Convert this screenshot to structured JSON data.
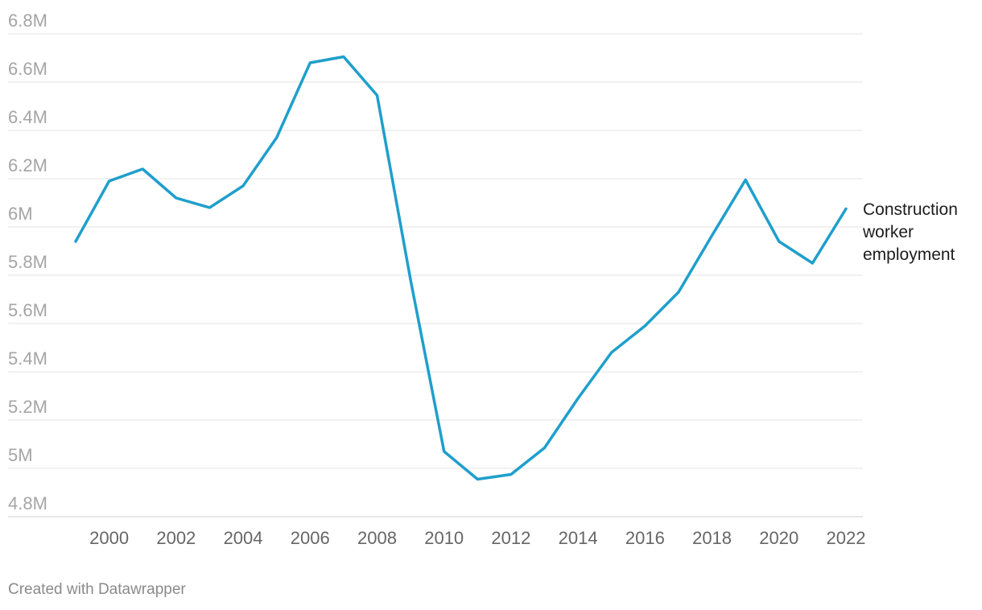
{
  "chart_data": {
    "type": "line",
    "title": "",
    "xlabel": "",
    "ylabel": "",
    "x": [
      1999,
      2000,
      2001,
      2002,
      2003,
      2004,
      2005,
      2006,
      2007,
      2008,
      2009,
      2010,
      2011,
      2012,
      2013,
      2014,
      2015,
      2016,
      2017,
      2018,
      2019,
      2020,
      2021,
      2022
    ],
    "series": [
      {
        "name": "Construction worker employment",
        "color": "#1f9fcc",
        "values": [
          5.94,
          6.19,
          6.24,
          6.12,
          6.08,
          6.17,
          6.37,
          6.68,
          6.705,
          6.545,
          5.78,
          5.07,
          4.955,
          4.975,
          5.085,
          5.29,
          5.48,
          5.59,
          5.73,
          5.965,
          6.195,
          5.94,
          5.85,
          6.075
        ]
      }
    ],
    "ylim": [
      4.8,
      6.8
    ],
    "y_ticks": [
      {
        "value": 6.8,
        "label": "6.8M"
      },
      {
        "value": 6.6,
        "label": "6.6M"
      },
      {
        "value": 6.4,
        "label": "6.4M"
      },
      {
        "value": 6.2,
        "label": "6.2M"
      },
      {
        "value": 6.0,
        "label": "6M"
      },
      {
        "value": 5.8,
        "label": "5.8M"
      },
      {
        "value": 5.6,
        "label": "5.6M"
      },
      {
        "value": 5.4,
        "label": "5.4M"
      },
      {
        "value": 5.2,
        "label": "5.2M"
      },
      {
        "value": 5.0,
        "label": "5M"
      },
      {
        "value": 4.8,
        "label": "4.8M"
      }
    ],
    "x_ticks": [
      2000,
      2002,
      2004,
      2006,
      2008,
      2010,
      2012,
      2014,
      2016,
      2018,
      2020,
      2022
    ],
    "grid": true,
    "legend": "direct label at line end, right"
  },
  "series_label_lines": [
    "Construction",
    "worker",
    "employment"
  ],
  "footer": {
    "credit": "Created with Datawrapper"
  }
}
